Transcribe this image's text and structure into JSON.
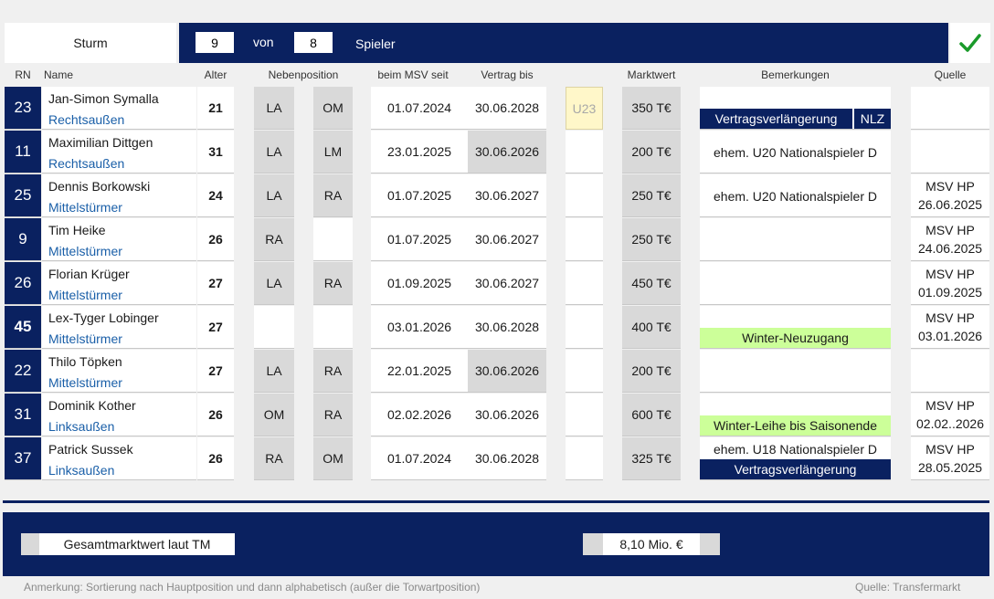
{
  "header": {
    "title": "Sturm",
    "count_current": "9",
    "count_von_label": "von",
    "count_total": "8",
    "spieler_label": "Spieler",
    "confirm_icon": "checkmark-icon"
  },
  "columns": {
    "rn": "RN",
    "name": "Name",
    "alter": "Alter",
    "nebenposition": "Nebenposition",
    "seit": "beim MSV seit",
    "vertrag": "Vertrag bis",
    "marktwert": "Marktwert",
    "bemerkungen": "Bemerkungen",
    "quelle": "Quelle"
  },
  "players": [
    {
      "rn": "23",
      "name": "Jan-Simon Symalla",
      "position": "Rechtsaußen",
      "age": "21",
      "pos1": "LA",
      "pos2": "OM",
      "since": "01.07.2024",
      "contract": "30.06.2028",
      "u23": "U23",
      "value": "350 T€",
      "remark": "",
      "tag": "Vertragsverlängerung",
      "tag2": "NLZ",
      "source1": "",
      "source2": ""
    },
    {
      "rn": "11",
      "name": "Maximilian Dittgen",
      "position": "Rechtsaußen",
      "age": "31",
      "pos1": "LA",
      "pos2": "LM",
      "since": "23.01.2025",
      "contract": "30.06.2026",
      "u23": "",
      "value": "200 T€",
      "remark": "ehem. U20 Nationalspieler D",
      "tag": "",
      "tag2": "",
      "source1": "",
      "source2": ""
    },
    {
      "rn": "25",
      "name": "Dennis Borkowski",
      "position": "Mittelstürmer",
      "age": "24",
      "pos1": "LA",
      "pos2": "RA",
      "since": "01.07.2025",
      "contract": "30.06.2027",
      "u23": "",
      "value": "250 T€",
      "remark": "ehem. U20 Nationalspieler D",
      "tag": "",
      "tag2": "",
      "source1": "MSV HP",
      "source2": "26.06.2025"
    },
    {
      "rn": "9",
      "name": "Tim Heike",
      "position": "Mittelstürmer",
      "age": "26",
      "pos1": "RA",
      "pos2": "",
      "since": "01.07.2025",
      "contract": "30.06.2027",
      "u23": "",
      "value": "250 T€",
      "remark": "",
      "tag": "",
      "tag2": "",
      "source1": "MSV HP",
      "source2": "24.06.2025"
    },
    {
      "rn": "26",
      "name": "Florian Krüger",
      "position": "Mittelstürmer",
      "age": "27",
      "pos1": "LA",
      "pos2": "RA",
      "since": "01.09.2025",
      "contract": "30.06.2027",
      "u23": "",
      "value": "450 T€",
      "remark": "",
      "tag": "",
      "tag2": "",
      "source1": "MSV HP",
      "source2": "01.09.2025"
    },
    {
      "rn": "45",
      "name": "Lex-Tyger Lobinger",
      "position": "Mittelstürmer",
      "age": "27",
      "pos1": "",
      "pos2": "",
      "since": "03.01.2026",
      "contract": "30.06.2028",
      "u23": "",
      "value": "400 T€",
      "remark": "",
      "tag": "Winter-Neuzugang",
      "tag2": "",
      "source1": "MSV HP",
      "source2": "03.01.2026"
    },
    {
      "rn": "22",
      "name": "Thilo Töpken",
      "position": "Mittelstürmer",
      "age": "27",
      "pos1": "LA",
      "pos2": "RA",
      "since": "22.01.2025",
      "contract": "30.06.2026",
      "u23": "",
      "value": "200 T€",
      "remark": "",
      "tag": "",
      "tag2": "",
      "source1": "",
      "source2": ""
    },
    {
      "rn": "31",
      "name": "Dominik Kother",
      "position": "Linksaußen",
      "age": "26",
      "pos1": "OM",
      "pos2": "RA",
      "since": "02.02.2026",
      "contract": "30.06.2026",
      "u23": "",
      "value": "600 T€",
      "remark": "",
      "tag": "Winter-Leihe bis Saisonende",
      "tag2": "",
      "source1": "MSV HP",
      "source2": "02.02..2026"
    },
    {
      "rn": "37",
      "name": "Patrick Sussek",
      "position": "Linksaußen",
      "age": "26",
      "pos1": "RA",
      "pos2": "OM",
      "since": "01.07.2024",
      "contract": "30.06.2028",
      "u23": "",
      "value": "325 T€",
      "remark": "ehem. U18 Nationalspieler D",
      "tag": "Vertragsverlängerung",
      "tag2": "",
      "source1": "MSV HP",
      "source2": "28.05.2025"
    }
  ],
  "footer": {
    "total_label": "Gesamtmarktwert laut TM",
    "total_value": "8,10 Mio. €",
    "note": "Anmerkung: Sortierung nach Hauptposition und dann alphabetisch (außer die Torwartposition)",
    "source_note": "Quelle: Transfermarkt"
  },
  "colors": {
    "navy": "#0a2160",
    "green_tag": "#ccff99",
    "u23_yellow": "#fff7c9",
    "grey_cell": "#d9d9d9",
    "link_blue": "#1a5fa8",
    "check_green": "#1a9a2a"
  }
}
